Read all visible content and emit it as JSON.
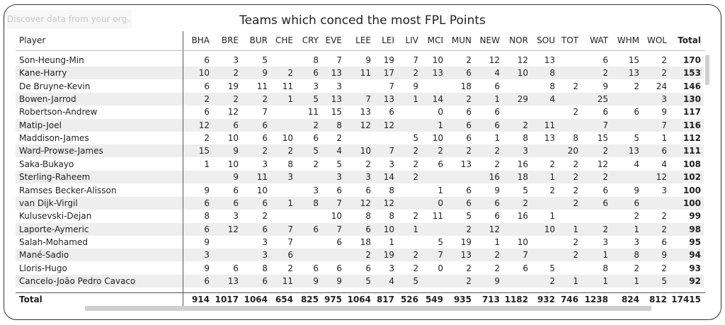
{
  "hint": "Discover data from your org.",
  "title": "Teams which conced the most FPL Points",
  "table": {
    "columns": [
      "Player",
      "BHA",
      "BRE",
      "BUR",
      "CHE",
      "CRY",
      "EVE",
      "LEE",
      "LEI",
      "LIV",
      "MCI",
      "MUN",
      "NEW",
      "NOR",
      "SOU",
      "TOT",
      "WAT",
      "WHM",
      "WOL",
      "Total"
    ],
    "rows": [
      [
        "Son-Heung-Min",
        6,
        3,
        5,
        null,
        8,
        7,
        9,
        19,
        7,
        10,
        2,
        12,
        12,
        13,
        null,
        6,
        15,
        2,
        170
      ],
      [
        "Kane-Harry",
        10,
        2,
        9,
        2,
        6,
        13,
        11,
        17,
        2,
        13,
        6,
        4,
        10,
        8,
        null,
        2,
        13,
        2,
        153
      ],
      [
        "De Bruyne-Kevin",
        6,
        19,
        11,
        11,
        3,
        3,
        null,
        7,
        9,
        null,
        18,
        6,
        null,
        8,
        2,
        9,
        2,
        24,
        146
      ],
      [
        "Bowen-Jarrod",
        2,
        2,
        2,
        1,
        5,
        13,
        7,
        13,
        1,
        14,
        2,
        1,
        29,
        4,
        null,
        25,
        null,
        3,
        130
      ],
      [
        "Robertson-Andrew",
        6,
        12,
        7,
        null,
        11,
        15,
        13,
        6,
        null,
        0,
        6,
        6,
        null,
        null,
        2,
        6,
        6,
        9,
        117
      ],
      [
        "Matip-Joel",
        12,
        6,
        6,
        null,
        2,
        8,
        12,
        12,
        null,
        1,
        6,
        6,
        2,
        11,
        null,
        7,
        null,
        7,
        116
      ],
      [
        "Maddison-James",
        2,
        10,
        6,
        10,
        6,
        2,
        null,
        null,
        5,
        10,
        6,
        1,
        8,
        13,
        8,
        15,
        5,
        1,
        112
      ],
      [
        "Ward-Prowse-James",
        15,
        9,
        2,
        2,
        5,
        4,
        10,
        7,
        2,
        2,
        2,
        2,
        3,
        null,
        20,
        2,
        13,
        6,
        111
      ],
      [
        "Saka-Bukayo",
        1,
        10,
        3,
        8,
        2,
        5,
        2,
        3,
        2,
        6,
        13,
        2,
        16,
        2,
        2,
        12,
        4,
        4,
        108
      ],
      [
        "Sterling-Raheem",
        null,
        9,
        11,
        3,
        null,
        3,
        3,
        14,
        2,
        null,
        null,
        16,
        18,
        1,
        2,
        2,
        null,
        12,
        102
      ],
      [
        "Ramses Becker-Alisson",
        9,
        6,
        10,
        null,
        3,
        6,
        6,
        8,
        null,
        1,
        6,
        9,
        5,
        2,
        2,
        6,
        9,
        3,
        100
      ],
      [
        "van Dijk-Virgil",
        6,
        6,
        6,
        1,
        8,
        7,
        12,
        12,
        null,
        0,
        6,
        6,
        2,
        null,
        2,
        6,
        6,
        null,
        100
      ],
      [
        "Kulusevski-Dejan",
        8,
        3,
        2,
        null,
        null,
        10,
        8,
        8,
        2,
        11,
        5,
        6,
        16,
        1,
        null,
        null,
        2,
        2,
        99
      ],
      [
        "Laporte-Aymeric",
        6,
        12,
        6,
        7,
        6,
        7,
        6,
        10,
        1,
        null,
        2,
        12,
        null,
        10,
        1,
        2,
        1,
        2,
        98
      ],
      [
        "Salah-Mohamed",
        9,
        null,
        3,
        7,
        null,
        6,
        18,
        1,
        null,
        5,
        19,
        1,
        10,
        null,
        2,
        3,
        3,
        6,
        95
      ],
      [
        "Mané-Sadio",
        3,
        null,
        3,
        6,
        null,
        null,
        2,
        19,
        2,
        7,
        13,
        2,
        7,
        null,
        2,
        1,
        8,
        9,
        94
      ],
      [
        "Lloris-Hugo",
        9,
        6,
        8,
        2,
        6,
        6,
        6,
        3,
        2,
        0,
        2,
        2,
        6,
        5,
        null,
        8,
        2,
        2,
        93
      ],
      [
        "Cancelo-João Pedro Cavaco",
        6,
        13,
        6,
        11,
        9,
        9,
        5,
        4,
        5,
        null,
        2,
        9,
        null,
        2,
        1,
        1,
        1,
        5,
        92
      ]
    ],
    "total_row": [
      "Total",
      914,
      1017,
      1064,
      654,
      825,
      975,
      1064,
      817,
      526,
      549,
      935,
      713,
      1182,
      932,
      746,
      1238,
      824,
      812,
      17415
    ]
  }
}
